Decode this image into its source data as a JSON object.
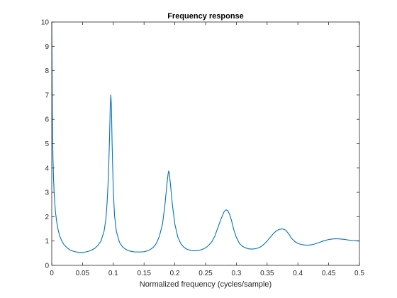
{
  "chart_data": {
    "type": "line",
    "title": "Frequency response",
    "xlabel": "Normalized frequency (cycles/sample)",
    "ylabel": "",
    "xlim": [
      0,
      0.5
    ],
    "ylim": [
      0,
      10
    ],
    "x_ticks": [
      0,
      0.05,
      0.1,
      0.15,
      0.2,
      0.25,
      0.3,
      0.35,
      0.4,
      0.45,
      0.5
    ],
    "x_tick_labels": [
      "0",
      "0.05",
      "0.1",
      "0.15",
      "0.2",
      "0.25",
      "0.3",
      "0.35",
      "0.4",
      "0.45",
      "0.5"
    ],
    "y_ticks": [
      0,
      1,
      2,
      3,
      4,
      5,
      6,
      7,
      8,
      9,
      10
    ],
    "y_tick_labels": [
      "0",
      "1",
      "2",
      "3",
      "4",
      "5",
      "6",
      "7",
      "8",
      "9",
      "10"
    ],
    "grid": false,
    "series": [
      {
        "color": "#0072bd",
        "x": [
          0,
          0.001,
          0.002,
          0.003,
          0.004,
          0.006,
          0.008,
          0.01,
          0.013,
          0.016,
          0.02,
          0.025,
          0.03,
          0.035,
          0.04,
          0.045,
          0.05,
          0.055,
          0.06,
          0.065,
          0.07,
          0.075,
          0.08,
          0.085,
          0.088,
          0.09,
          0.092,
          0.094,
          0.095,
          0.096,
          0.097,
          0.098,
          0.1,
          0.102,
          0.105,
          0.11,
          0.115,
          0.12,
          0.125,
          0.13,
          0.135,
          0.14,
          0.145,
          0.15,
          0.155,
          0.16,
          0.165,
          0.17,
          0.175,
          0.18,
          0.184,
          0.187,
          0.189,
          0.19,
          0.191,
          0.193,
          0.196,
          0.2,
          0.205,
          0.21,
          0.215,
          0.22,
          0.225,
          0.23,
          0.235,
          0.24,
          0.245,
          0.25,
          0.255,
          0.26,
          0.265,
          0.27,
          0.275,
          0.28,
          0.283,
          0.286,
          0.289,
          0.292,
          0.296,
          0.3,
          0.305,
          0.31,
          0.315,
          0.32,
          0.325,
          0.33,
          0.335,
          0.34,
          0.345,
          0.35,
          0.355,
          0.36,
          0.365,
          0.37,
          0.375,
          0.38,
          0.385,
          0.39,
          0.395,
          0.4,
          0.405,
          0.41,
          0.415,
          0.42,
          0.425,
          0.43,
          0.435,
          0.44,
          0.445,
          0.45,
          0.455,
          0.46,
          0.465,
          0.47,
          0.475,
          0.48,
          0.485,
          0.49,
          0.495,
          0.5
        ],
        "y": [
          10,
          6.2,
          4.4,
          3.5,
          2.9,
          2.2,
          1.8,
          1.5,
          1.2,
          1.02,
          0.85,
          0.72,
          0.63,
          0.58,
          0.55,
          0.53,
          0.53,
          0.55,
          0.58,
          0.63,
          0.7,
          0.82,
          1.0,
          1.4,
          1.9,
          2.6,
          3.6,
          5.3,
          6.5,
          7.0,
          6.5,
          5.1,
          3.1,
          2.05,
          1.4,
          0.95,
          0.76,
          0.66,
          0.6,
          0.57,
          0.55,
          0.55,
          0.55,
          0.56,
          0.59,
          0.65,
          0.74,
          0.9,
          1.2,
          1.7,
          2.5,
          3.3,
          3.75,
          3.88,
          3.8,
          3.3,
          2.5,
          1.7,
          1.15,
          0.88,
          0.74,
          0.66,
          0.62,
          0.6,
          0.6,
          0.62,
          0.66,
          0.72,
          0.82,
          0.97,
          1.2,
          1.55,
          1.9,
          2.2,
          2.28,
          2.25,
          2.1,
          1.85,
          1.45,
          1.15,
          0.9,
          0.78,
          0.72,
          0.68,
          0.67,
          0.68,
          0.71,
          0.77,
          0.87,
          1.0,
          1.15,
          1.3,
          1.42,
          1.48,
          1.5,
          1.45,
          1.3,
          1.1,
          0.98,
          0.9,
          0.86,
          0.84,
          0.83,
          0.84,
          0.86,
          0.9,
          0.94,
          0.99,
          1.03,
          1.06,
          1.08,
          1.09,
          1.09,
          1.08,
          1.07,
          1.05,
          1.03,
          1.02,
          1.01,
          1.0
        ]
      }
    ]
  }
}
